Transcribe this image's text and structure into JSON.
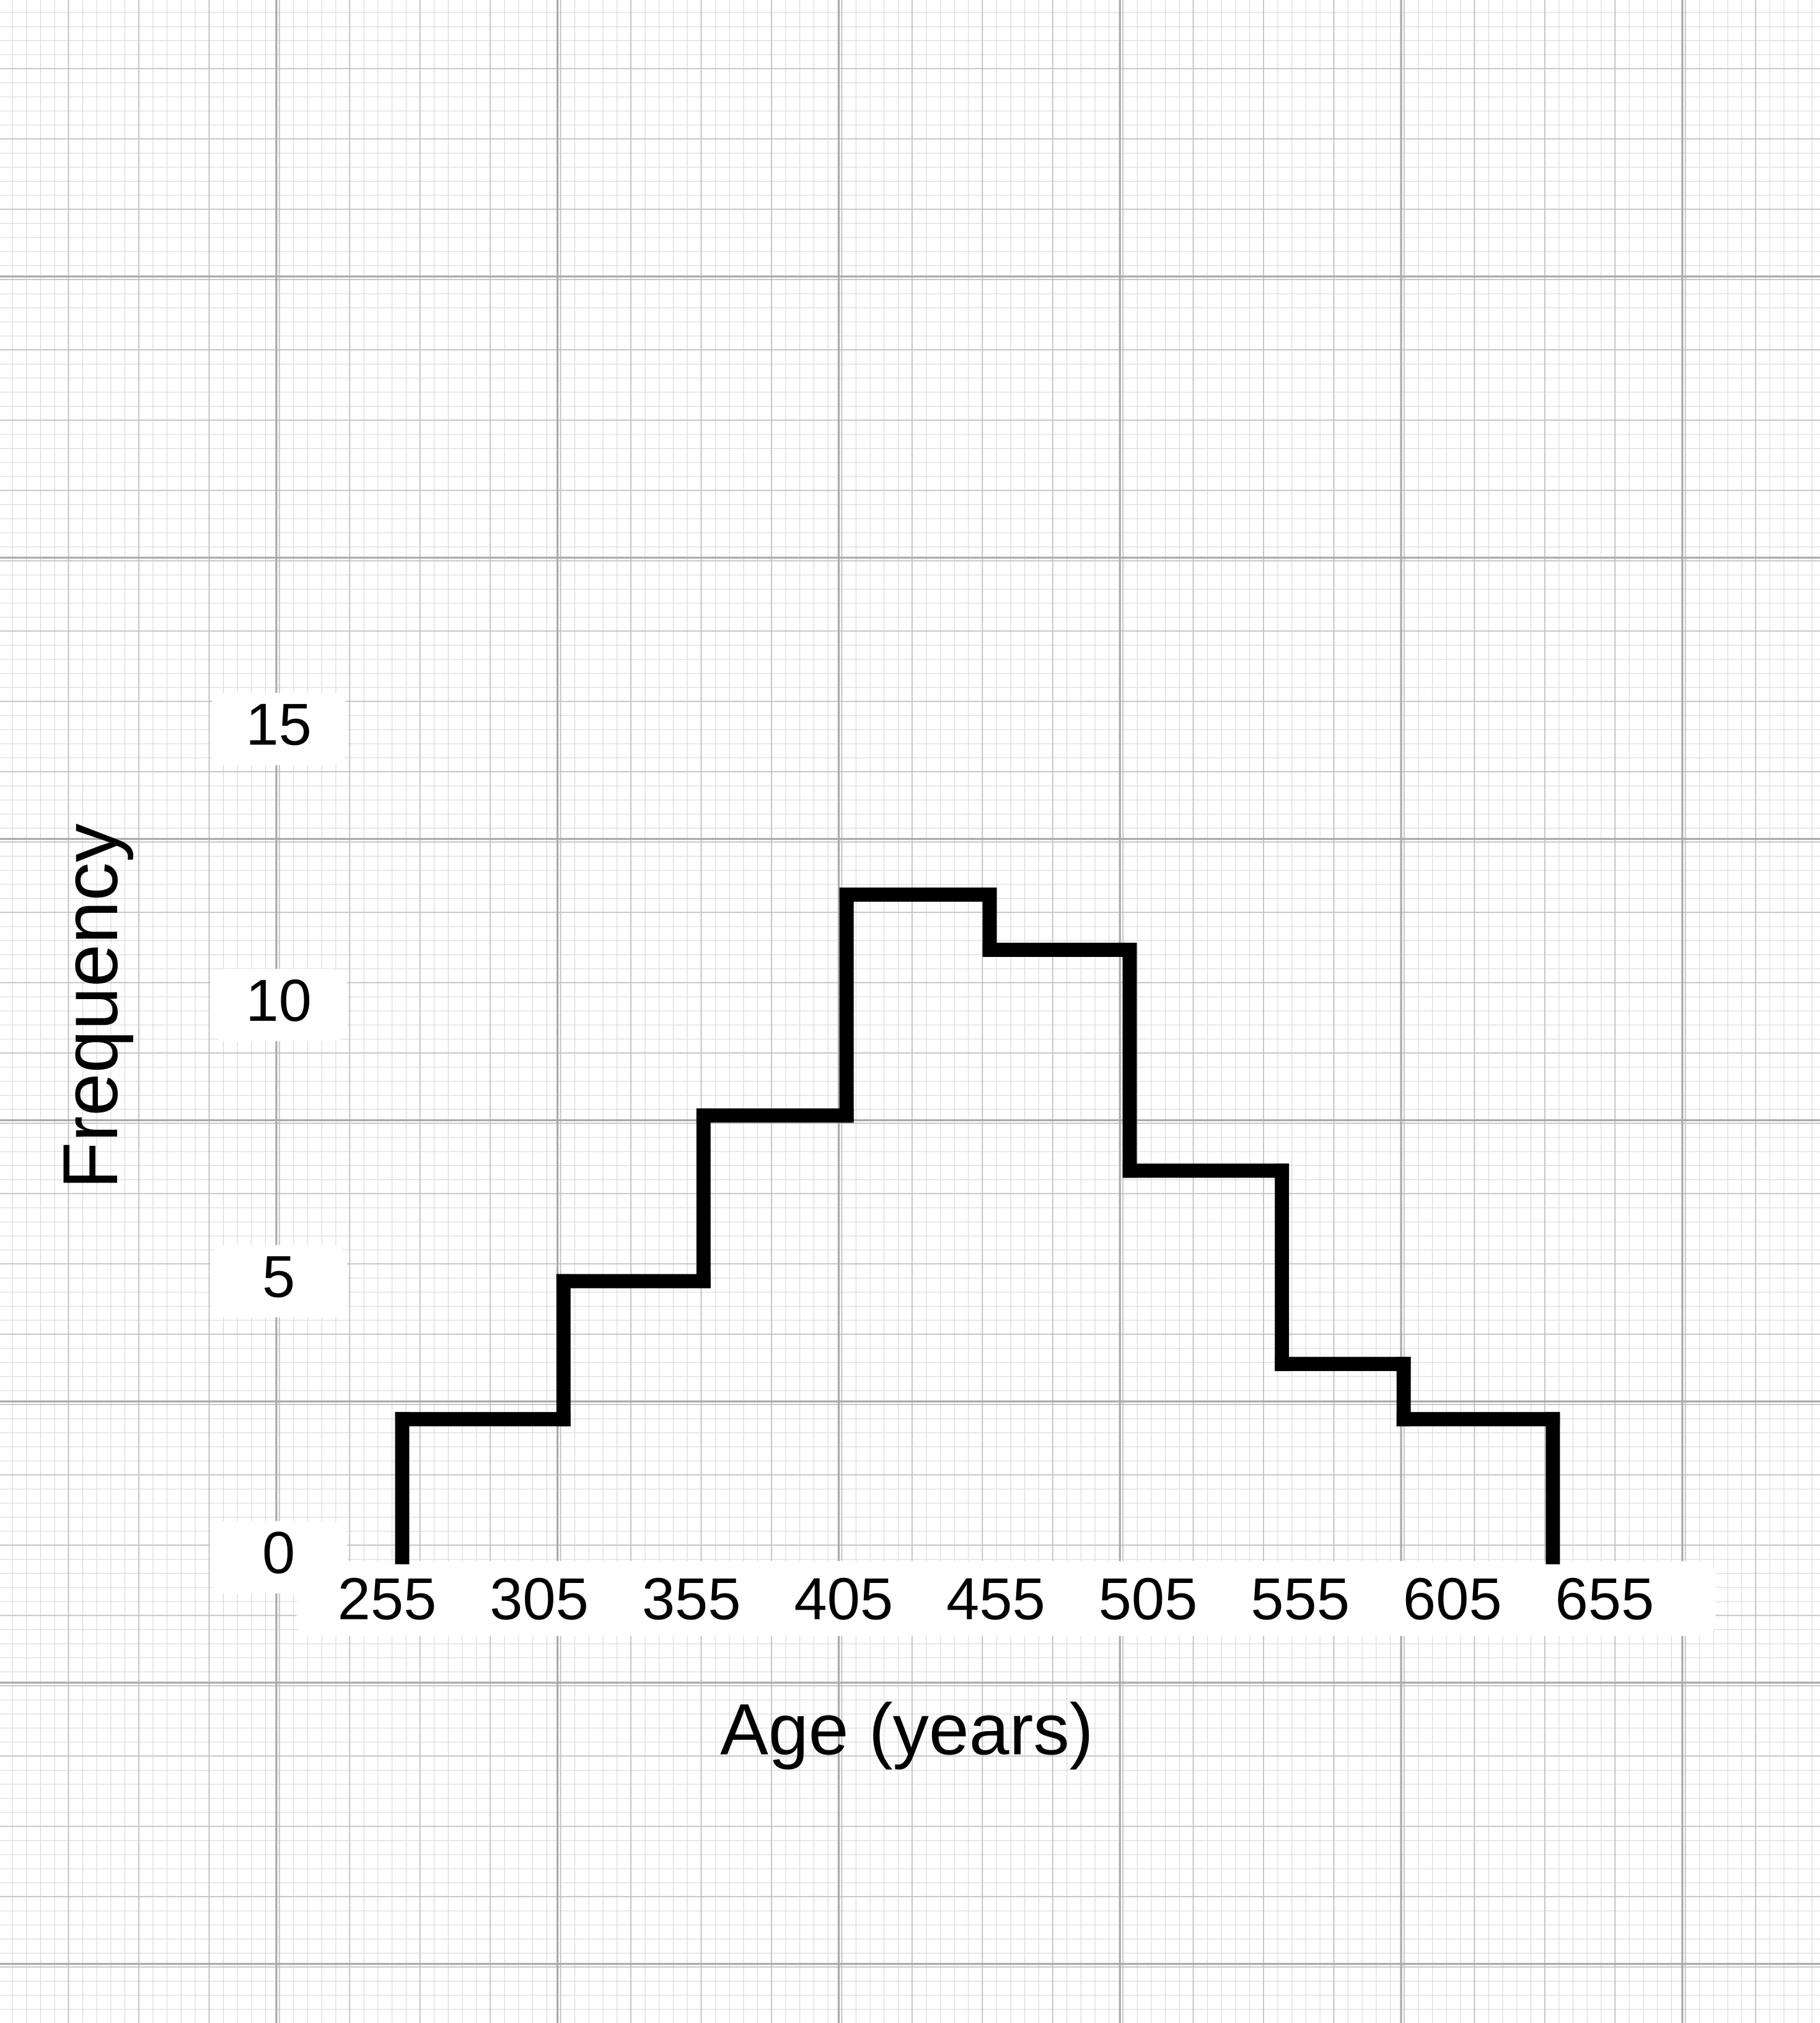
{
  "chart_data": {
    "type": "histogram",
    "x_label": "Age (years)",
    "y_label": "Frequency",
    "bins": [
      260,
      313,
      359,
      406,
      453,
      499,
      549,
      589,
      638
    ],
    "values": [
      2.5,
      5,
      8,
      12,
      11,
      7,
      3.5,
      2.5
    ],
    "color": "#000000",
    "xlim": [
      230,
      680
    ],
    "xticks": [
      255,
      305,
      355,
      405,
      455,
      505,
      555,
      605,
      655
    ],
    "ylim": [
      0,
      15
    ],
    "yticks": [
      0,
      5,
      10,
      15
    ]
  }
}
